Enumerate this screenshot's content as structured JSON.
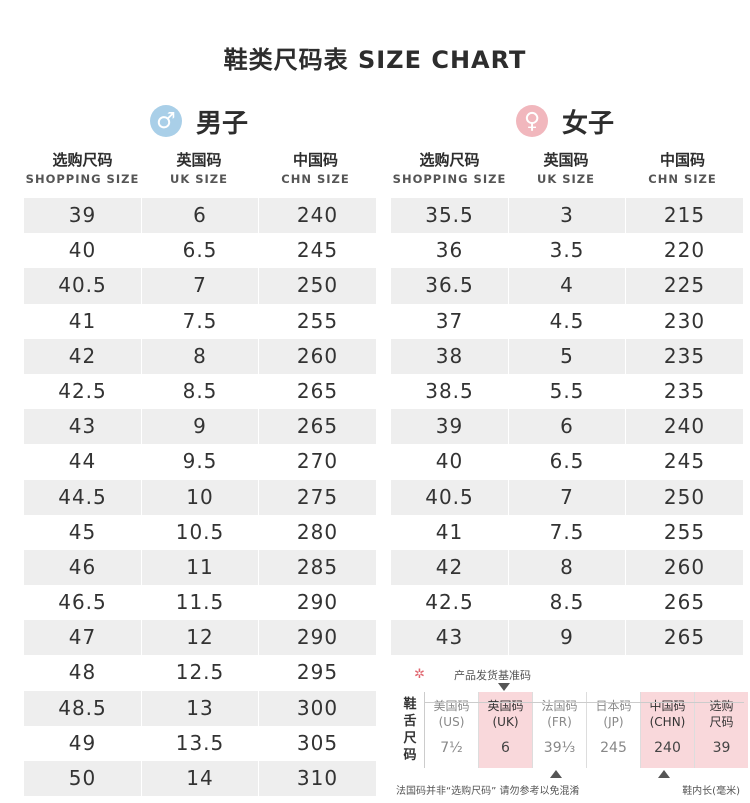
{
  "title": "鞋类尺码表 SIZE CHART",
  "men": {
    "symbol": "♂",
    "label": "男子",
    "headers": [
      {
        "cn": "选购尺码",
        "en": "SHOPPING SIZE"
      },
      {
        "cn": "英国码",
        "en": "UK SIZE"
      },
      {
        "cn": "中国码",
        "en": "CHN SIZE"
      }
    ],
    "rows": [
      [
        "39",
        "6",
        "240"
      ],
      [
        "40",
        "6.5",
        "245"
      ],
      [
        "40.5",
        "7",
        "250"
      ],
      [
        "41",
        "7.5",
        "255"
      ],
      [
        "42",
        "8",
        "260"
      ],
      [
        "42.5",
        "8.5",
        "265"
      ],
      [
        "43",
        "9",
        "265"
      ],
      [
        "44",
        "9.5",
        "270"
      ],
      [
        "44.5",
        "10",
        "275"
      ],
      [
        "45",
        "10.5",
        "280"
      ],
      [
        "46",
        "11",
        "285"
      ],
      [
        "46.5",
        "11.5",
        "290"
      ],
      [
        "47",
        "12",
        "290"
      ],
      [
        "48",
        "12.5",
        "295"
      ],
      [
        "48.5",
        "13",
        "300"
      ],
      [
        "49",
        "13.5",
        "305"
      ],
      [
        "50",
        "14",
        "310"
      ]
    ]
  },
  "women": {
    "symbol": "♀",
    "label": "女子",
    "headers": [
      {
        "cn": "选购尺码",
        "en": "SHOPPING SIZE"
      },
      {
        "cn": "英国码",
        "en": "UK SIZE"
      },
      {
        "cn": "中国码",
        "en": "CHN SIZE"
      }
    ],
    "rows": [
      [
        "35.5",
        "3",
        "215"
      ],
      [
        "36",
        "3.5",
        "220"
      ],
      [
        "36.5",
        "4",
        "225"
      ],
      [
        "37",
        "4.5",
        "230"
      ],
      [
        "38",
        "5",
        "235"
      ],
      [
        "38.5",
        "5.5",
        "235"
      ],
      [
        "39",
        "6",
        "240"
      ],
      [
        "40",
        "6.5",
        "245"
      ],
      [
        "40.5",
        "7",
        "250"
      ],
      [
        "41",
        "7.5",
        "255"
      ],
      [
        "42",
        "8",
        "260"
      ],
      [
        "42.5",
        "8.5",
        "265"
      ],
      [
        "43",
        "9",
        "265"
      ]
    ]
  },
  "tongue_label": {
    "caption": "产品发货基准码",
    "side": [
      "鞋",
      "舌",
      "尺",
      "码"
    ],
    "columns": [
      {
        "h1": "美国码",
        "h2": "(US)",
        "value": "7½",
        "highlight": false
      },
      {
        "h1": "英国码",
        "h2": "(UK)",
        "value": "6",
        "highlight": true
      },
      {
        "h1": "法国码",
        "h2": "(FR)",
        "value": "39⅓",
        "highlight": false
      },
      {
        "h1": "日本码",
        "h2": "(JP)",
        "value": "245",
        "highlight": false
      },
      {
        "h1": "中国码",
        "h2": "(CHN)",
        "value": "240",
        "highlight": true
      },
      {
        "h1": "选购",
        "h2": "尺码",
        "value": "39",
        "highlight": true
      }
    ],
    "note_left": "法国码并非“选购尺码” 请勿参考以免混淆",
    "note_right": "鞋内长(毫米)"
  },
  "colors": {
    "men_badge": "#a9cfe8",
    "women_badge": "#f1b7bd",
    "row_stripe": "#eeeeee",
    "highlight": "#f9d8db"
  }
}
